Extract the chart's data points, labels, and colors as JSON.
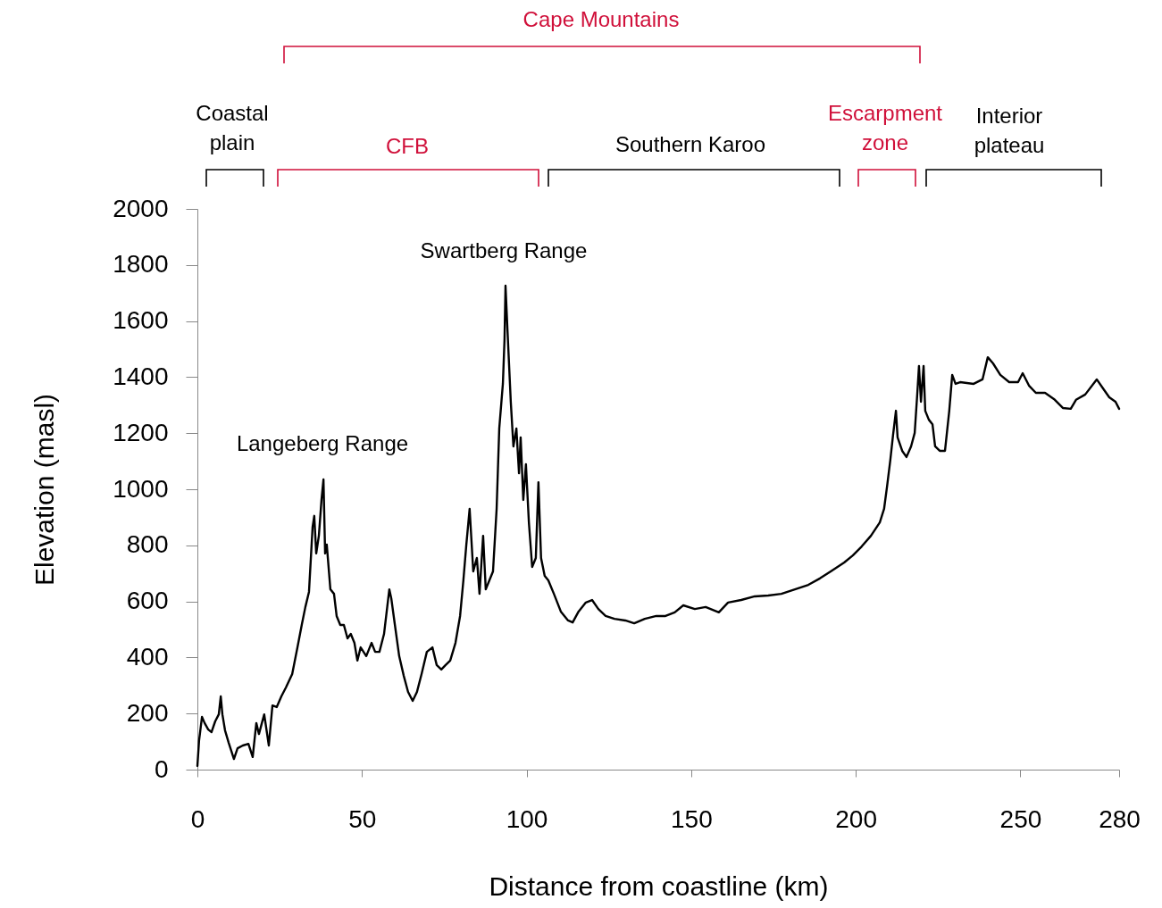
{
  "chart_data": {
    "type": "line",
    "xlabel": "Distance from coastline (km)",
    "ylabel": "Elevation (masl)",
    "xlim": [
      0,
      280
    ],
    "xticks": [
      0,
      50,
      100,
      150,
      200,
      250,
      280
    ],
    "ylim": [
      0,
      2000
    ],
    "yticks": [
      0,
      200,
      400,
      600,
      800,
      1000,
      1200,
      1400,
      1600,
      1800,
      2000
    ],
    "grid": false,
    "marker": "none",
    "line_style": "solid",
    "series": [
      {
        "color": "#000000",
        "x": [
          0,
          0.5,
          1.4,
          2.2,
          3.3,
          4.3,
          5.4,
          6.5,
          7.1,
          7.6,
          8.4,
          9.5,
          11.1,
          12.2,
          13.8,
          15.5,
          16.8,
          17.9,
          18.7,
          20.3,
          21.7,
          22.8,
          24.1,
          25.5,
          26.9,
          28.8,
          30.4,
          31.7,
          32.8,
          33.9,
          35.0,
          35.5,
          36.1,
          36.9,
          37.7,
          38.3,
          38.8,
          39.3,
          40.4,
          41.5,
          42.3,
          43.4,
          44.5,
          45.6,
          46.6,
          47.7,
          48.6,
          49.6,
          51.3,
          52.9,
          54.0,
          55.3,
          56.7,
          58.3,
          58.9,
          60.0,
          61.3,
          62.7,
          64.0,
          65.4,
          66.7,
          68.1,
          69.7,
          71.4,
          72.7,
          74.1,
          75.4,
          76.8,
          78.4,
          79.8,
          80.8,
          81.7,
          82.7,
          83.8,
          84.9,
          85.7,
          86.8,
          87.6,
          88.7,
          89.8,
          90.9,
          91.7,
          92.8,
          93.3,
          93.6,
          94.2,
          95.2,
          96.0,
          96.9,
          97.7,
          98.2,
          99.0,
          99.8,
          100.7,
          101.7,
          102.8,
          103.6,
          104.4,
          105.5,
          106.6,
          108.3,
          110.4,
          112.6,
          114.0,
          115.8,
          118.0,
          119.9,
          121.8,
          124.0,
          126.7,
          130.0,
          132.7,
          135.9,
          139.4,
          142.2,
          145.0,
          147.6,
          151.1,
          154.4,
          158.4,
          161.2,
          165.2,
          169.3,
          173.4,
          177.4,
          181.5,
          185.6,
          189.1,
          192.4,
          196.5,
          199.1,
          201.8,
          204.6,
          207.3,
          208.6,
          209.5,
          210.5,
          211.3,
          212.2,
          212.7,
          214.1,
          215.4,
          216.8,
          217.9,
          218.7,
          219.2,
          219.8,
          220.6,
          221.1,
          222.2,
          223.3,
          224.1,
          225.5,
          227.1,
          228.4,
          229.3,
          230.3,
          231.7,
          235.8,
          238.5,
          240.1,
          241.7,
          243.9,
          246.6,
          249.3,
          250.7,
          252.6,
          254.7,
          257.5,
          260.2,
          262.9,
          265.3,
          266.9,
          269.7,
          273.2,
          275.1,
          277.0,
          278.9,
          280.0
        ],
        "values": [
          13,
          102,
          188,
          166,
          143,
          134,
          172,
          197,
          261,
          197,
          140,
          96,
          38,
          76,
          86,
          92,
          45,
          166,
          127,
          197,
          86,
          229,
          223,
          261,
          293,
          341,
          436,
          516,
          580,
          634,
          866,
          905,
          771,
          834,
          962,
          1035,
          771,
          803,
          643,
          627,
          548,
          516,
          516,
          468,
          484,
          452,
          389,
          436,
          405,
          452,
          420,
          420,
          484,
          643,
          611,
          516,
          405,
          334,
          277,
          245,
          277,
          341,
          420,
          436,
          373,
          357,
          373,
          389,
          452,
          548,
          675,
          803,
          930,
          707,
          755,
          627,
          834,
          643,
          675,
          707,
          930,
          1217,
          1376,
          1535,
          1726,
          1567,
          1312,
          1153,
          1217,
          1057,
          1185,
          962,
          1089,
          882,
          723,
          755,
          1025,
          755,
          691,
          675,
          627,
          564,
          532,
          525,
          564,
          596,
          605,
          573,
          548,
          538,
          532,
          522,
          538,
          548,
          548,
          561,
          586,
          573,
          580,
          561,
          596,
          605,
          618,
          621,
          627,
          643,
          659,
          682,
          707,
          739,
          764,
          796,
          834,
          882,
          930,
          1010,
          1105,
          1191,
          1280,
          1185,
          1137,
          1115,
          1153,
          1201,
          1344,
          1440,
          1312,
          1440,
          1280,
          1248,
          1232,
          1153,
          1137,
          1137,
          1280,
          1408,
          1376,
          1382,
          1376,
          1392,
          1471,
          1449,
          1408,
          1382,
          1382,
          1414,
          1370,
          1344,
          1344,
          1322,
          1290,
          1287,
          1319,
          1338,
          1392,
          1360,
          1328,
          1312,
          1287
        ]
      }
    ],
    "annotations": [
      "Cape Mountains",
      "Coastal plain",
      "CFB",
      "Southern Karoo",
      "Escarpment zone",
      "Interior plateau",
      "Langeberg Range",
      "Swartberg Range"
    ]
  }
}
